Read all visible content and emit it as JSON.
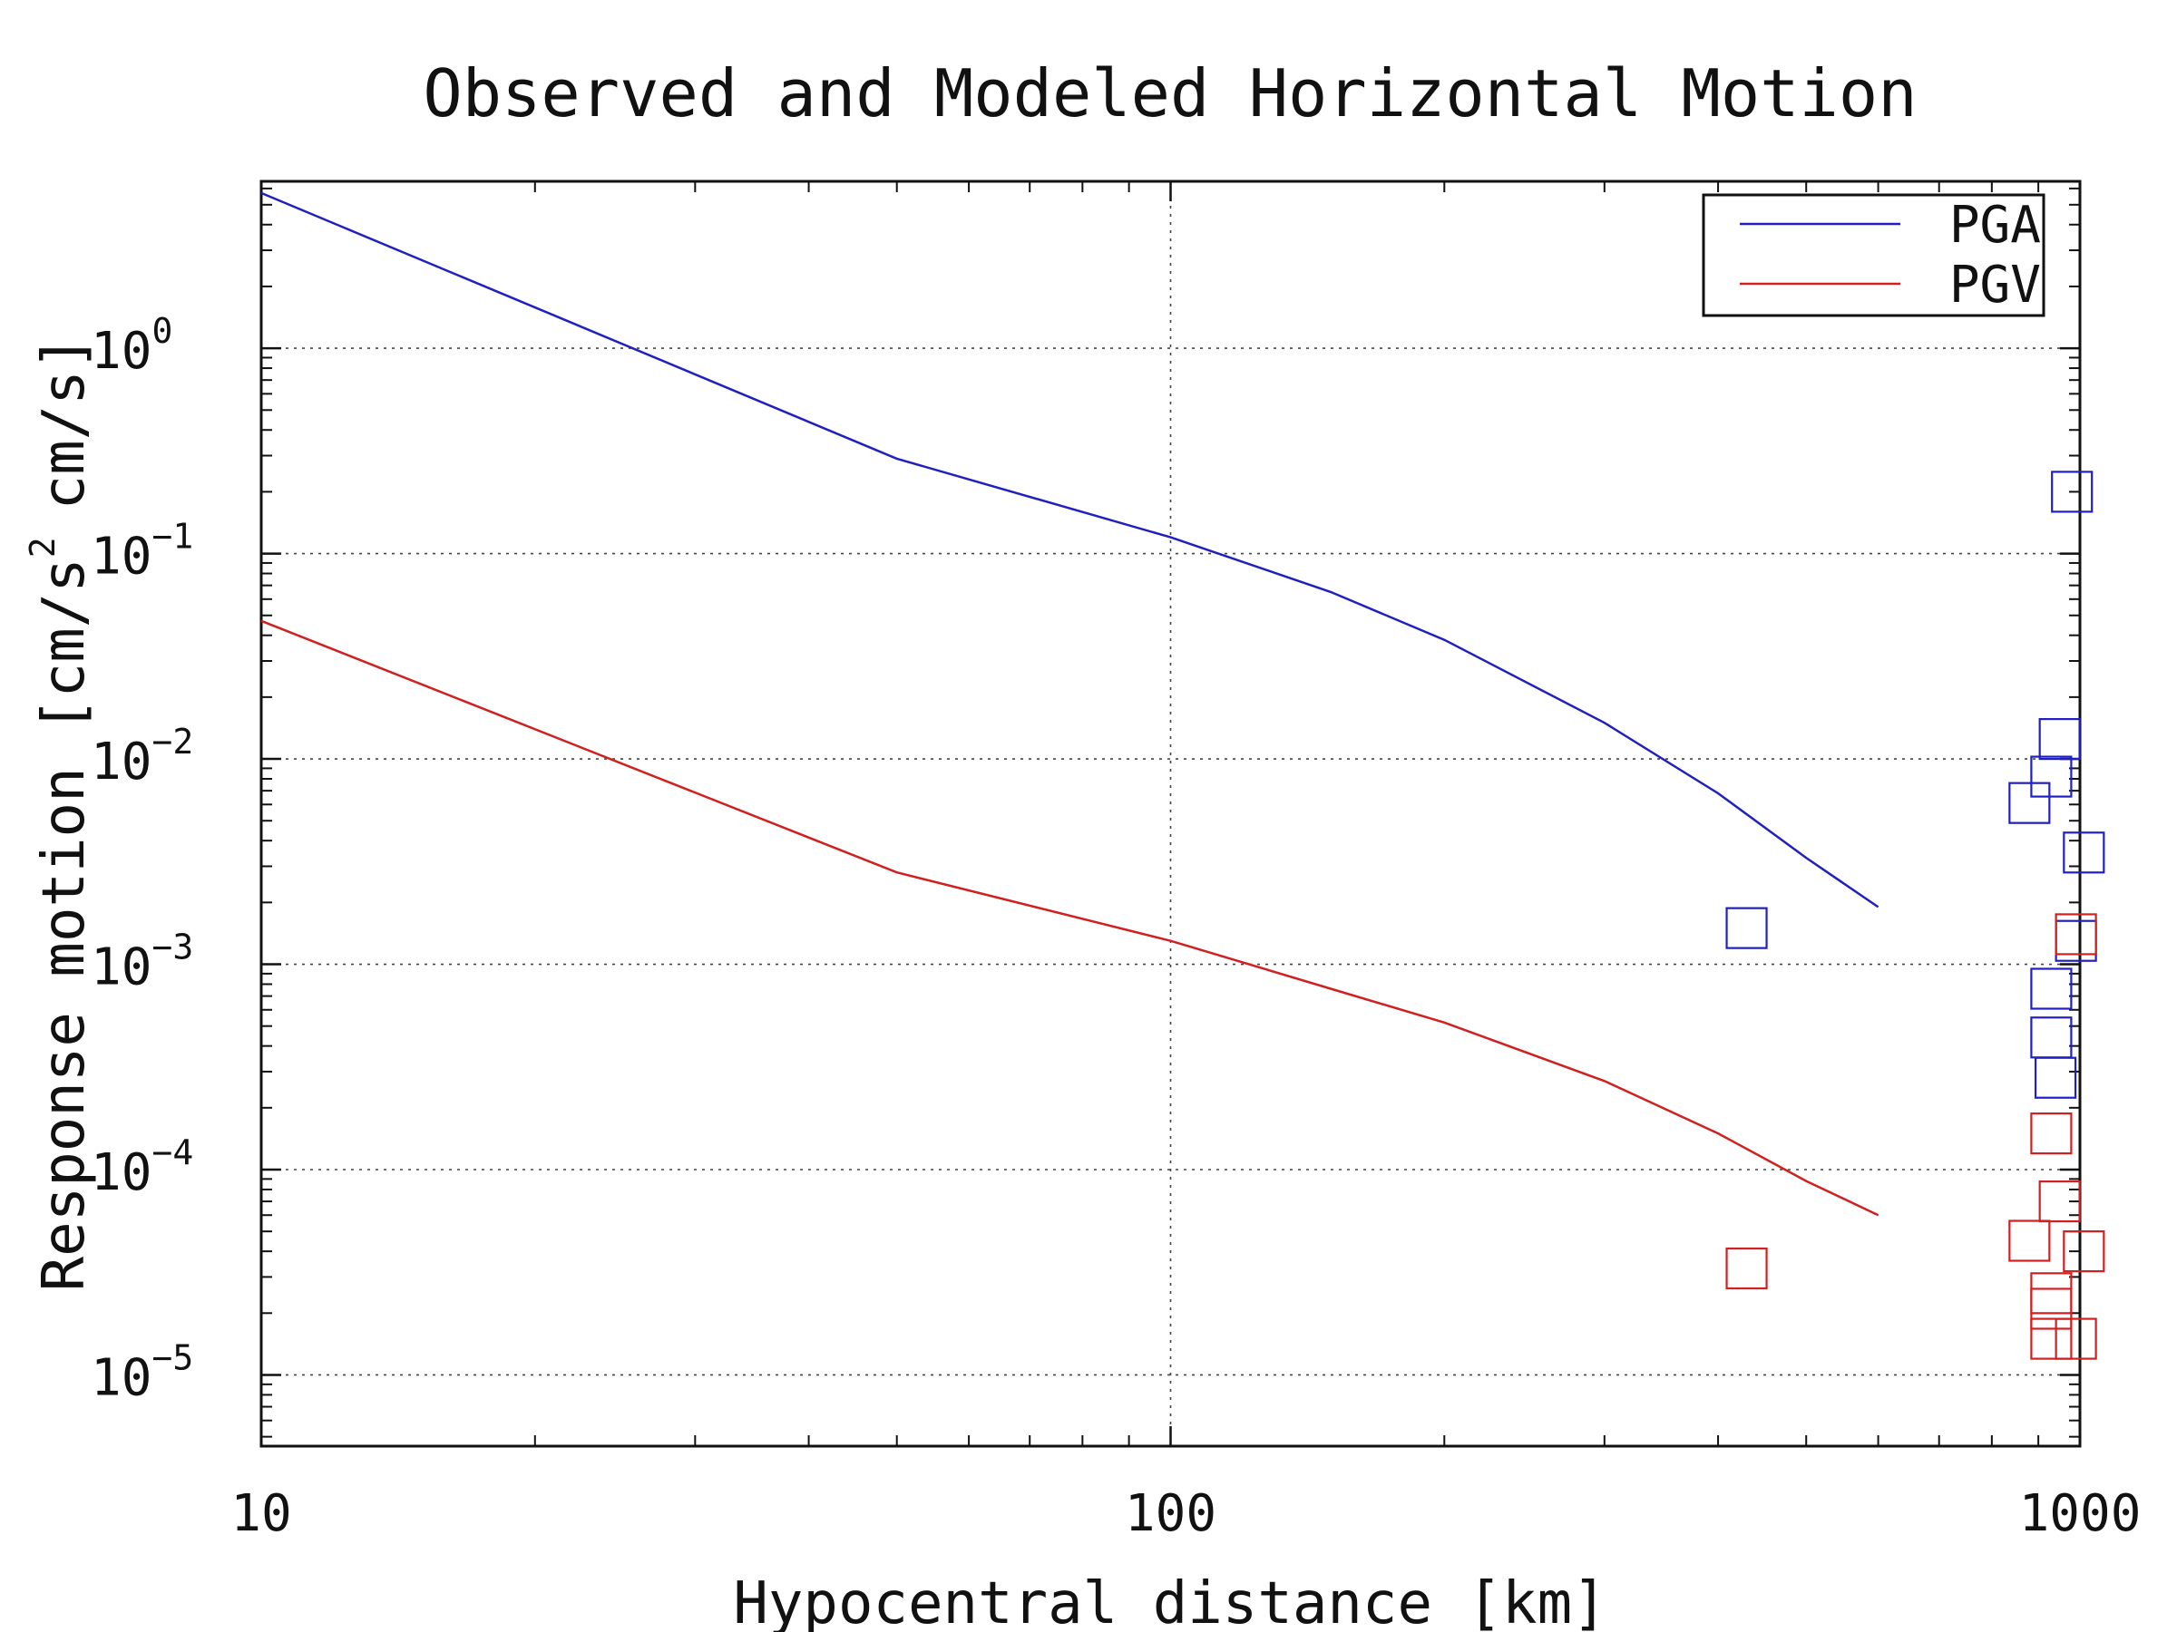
{
  "chart_data": {
    "type": "scatter",
    "title": "Observed and Modeled Horizontal Motion",
    "xlabel": "Hypocentral distance [km]",
    "ylabel": {
      "main": "Response motion [cm/s",
      "sup": "2",
      "tail": "cm/s]"
    },
    "x_scale": "log",
    "y_scale": "log",
    "xlim": [
      10,
      1000
    ],
    "ylim": [
      4.5e-06,
      6.5
    ],
    "grid": true,
    "legend_position": "top-right",
    "x_ticks": [
      {
        "value": 10,
        "label": "10"
      },
      {
        "value": 100,
        "label": "100"
      },
      {
        "value": 1000,
        "label": "1000"
      }
    ],
    "y_ticks": [
      {
        "value": 1,
        "base": "10",
        "exp": "0"
      },
      {
        "value": 0.1,
        "base": "10",
        "exp": "−1"
      },
      {
        "value": 0.01,
        "base": "10",
        "exp": "−2"
      },
      {
        "value": 0.001,
        "base": "10",
        "exp": "−3"
      },
      {
        "value": 0.0001,
        "base": "10",
        "exp": "−4"
      },
      {
        "value": 1e-05,
        "base": "10",
        "exp": "−5"
      }
    ],
    "series": [
      {
        "name": "PGA",
        "color": "#2020c0",
        "line": {
          "x": [
            10,
            50,
            100,
            150,
            200,
            300,
            400,
            500,
            600
          ],
          "y": [
            5.7,
            0.29,
            0.12,
            0.065,
            0.038,
            0.015,
            0.0068,
            0.0033,
            0.0019
          ]
        },
        "observed": {
          "x": [
            430,
            980,
            950,
            930,
            880,
            1010,
            990,
            930,
            930,
            940
          ],
          "y": [
            0.0015,
            0.2,
            0.0125,
            0.0082,
            0.0061,
            0.0035,
            0.0013,
            0.00076,
            0.00044,
            0.00028
          ]
        }
      },
      {
        "name": "PGV",
        "color": "#d02020",
        "line": {
          "x": [
            10,
            50,
            100,
            150,
            200,
            300,
            400,
            500,
            600
          ],
          "y": [
            0.047,
            0.0028,
            0.0013,
            0.00076,
            0.00052,
            0.00027,
            0.00015,
            8.8e-05,
            6e-05
          ]
        },
        "observed": {
          "x": [
            430,
            990,
            930,
            950,
            880,
            1010,
            930,
            930,
            930,
            990
          ],
          "y": [
            3.3e-05,
            0.0014,
            0.00015,
            7e-05,
            4.5e-05,
            4e-05,
            2.5e-05,
            2.1e-05,
            1.5e-05,
            1.5e-05
          ]
        }
      }
    ]
  }
}
